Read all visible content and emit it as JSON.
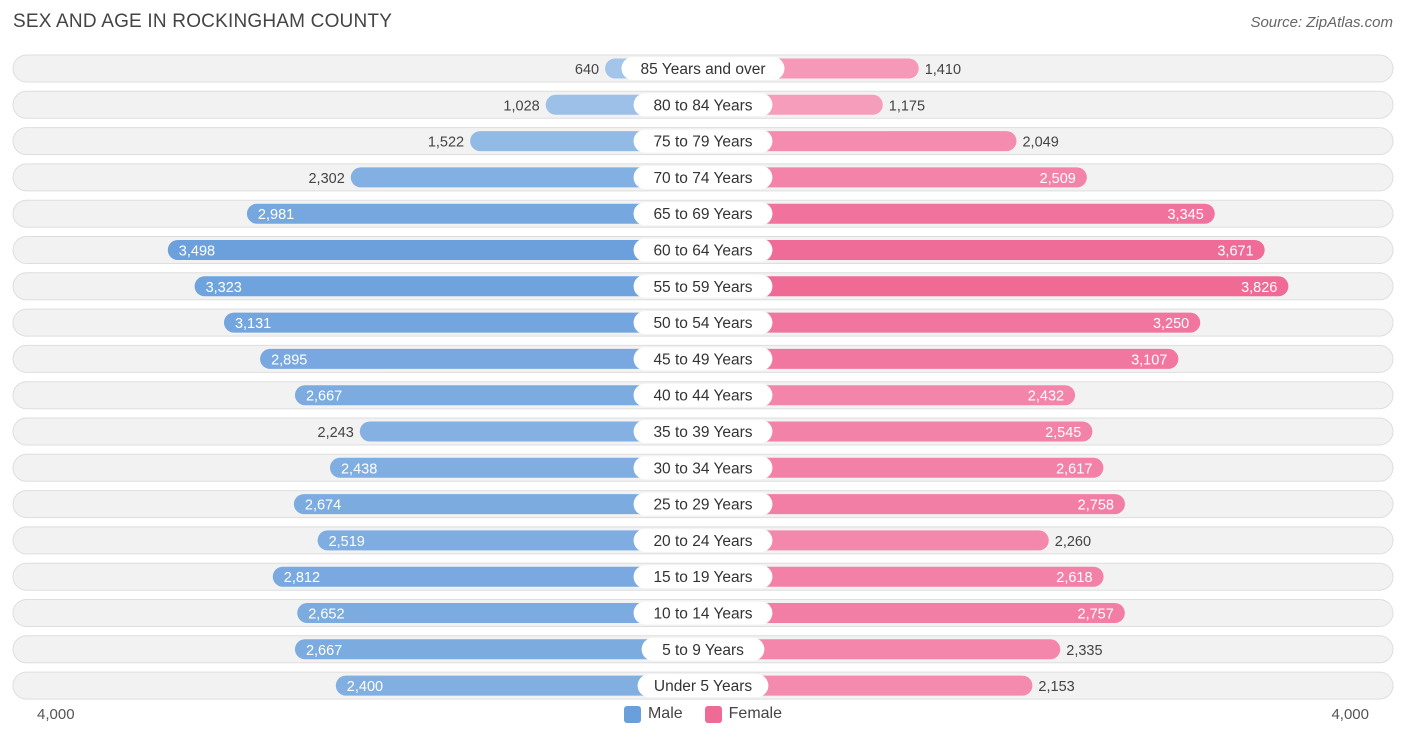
{
  "header": {
    "title": "SEX AND AGE IN ROCKINGHAM COUNTY",
    "source": "Source: ZipAtlas.com"
  },
  "legend": {
    "male_label": "Male",
    "female_label": "Female"
  },
  "axis": {
    "left_label": "4,000",
    "right_label": "4,000"
  },
  "colors": {
    "male_light": "#a4c6ea",
    "male_dark": "#6a9fdc",
    "female_light": "#f8a8c4",
    "female_dark": "#f06a96",
    "row_bg": "#f2f2f2",
    "row_border": "#dedede"
  },
  "chart_data": {
    "type": "bar",
    "orientation": "horizontal-diverging",
    "title": "SEX AND AGE IN ROCKINGHAM COUNTY",
    "xlim": [
      -4000,
      4000
    ],
    "categories": [
      "85 Years and over",
      "80 to 84 Years",
      "75 to 79 Years",
      "70 to 74 Years",
      "65 to 69 Years",
      "60 to 64 Years",
      "55 to 59 Years",
      "50 to 54 Years",
      "45 to 49 Years",
      "40 to 44 Years",
      "35 to 39 Years",
      "30 to 34 Years",
      "25 to 29 Years",
      "20 to 24 Years",
      "15 to 19 Years",
      "10 to 14 Years",
      "5 to 9 Years",
      "Under 5 Years"
    ],
    "series": [
      {
        "name": "Male",
        "values": [
          640,
          1028,
          1522,
          2302,
          2981,
          3498,
          3323,
          3131,
          2895,
          2667,
          2243,
          2438,
          2674,
          2519,
          2812,
          2652,
          2667,
          2400
        ],
        "labels": [
          "640",
          "1,028",
          "1,522",
          "2,302",
          "2,981",
          "3,498",
          "3,323",
          "3,131",
          "2,895",
          "2,667",
          "2,243",
          "2,438",
          "2,674",
          "2,519",
          "2,812",
          "2,652",
          "2,667",
          "2,400"
        ]
      },
      {
        "name": "Female",
        "values": [
          1410,
          1175,
          2049,
          2509,
          3345,
          3671,
          3826,
          3250,
          3107,
          2432,
          2545,
          2617,
          2758,
          2260,
          2618,
          2757,
          2335,
          2153
        ],
        "labels": [
          "1,410",
          "1,175",
          "2,049",
          "2,509",
          "3,345",
          "3,671",
          "3,826",
          "3,250",
          "3,107",
          "2,432",
          "2,545",
          "2,617",
          "2,758",
          "2,260",
          "2,618",
          "2,757",
          "2,335",
          "2,153"
        ]
      }
    ]
  }
}
